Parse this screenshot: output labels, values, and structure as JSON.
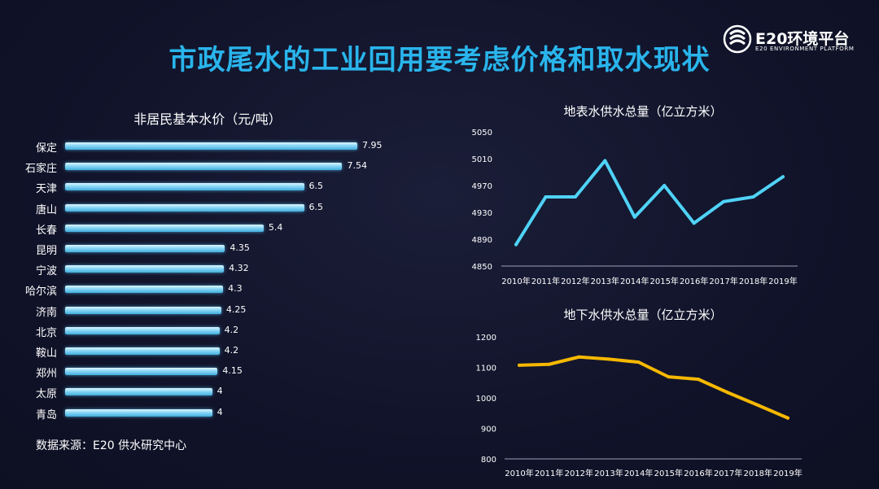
{
  "page": {
    "title": "市政尾水的工业回用要考虑价格和取水现状"
  },
  "logo": {
    "name": "E20环境平台",
    "subtitle": "E20 ENVIRONMENT PLATFORM"
  },
  "source": "数据来源：E20 供水研究中心",
  "colors": {
    "title": "#29b5ec",
    "bar": "#7fd3f5",
    "line1": "#4fd3f7",
    "line2": "#f5b800",
    "background": "#12142b"
  },
  "chart_data": [
    {
      "type": "bar",
      "orientation": "horizontal",
      "title": "非居民基本水价（元/吨）",
      "categories": [
        "保定",
        "石家庄",
        "天津",
        "唐山",
        "长春",
        "昆明",
        "宁波",
        "哈尔滨",
        "济南",
        "北京",
        "鞍山",
        "郑州",
        "太原",
        "青岛"
      ],
      "values": [
        7.95,
        7.54,
        6.5,
        6.5,
        5.4,
        4.35,
        4.32,
        4.3,
        4.25,
        4.2,
        4.2,
        4.15,
        4,
        4
      ],
      "value_labels": [
        "7.95",
        "7.54",
        "6.5",
        "6.5",
        "5.4",
        "4.35",
        "4.32",
        "4.3",
        "4.25",
        "4.2",
        "4.2",
        "4.15",
        "4",
        "4"
      ],
      "xlim": [
        0,
        8.6
      ]
    },
    {
      "type": "line",
      "title": "地表水供水总量（亿立方米）",
      "categories": [
        "2010年",
        "2011年",
        "2012年",
        "2013年",
        "2014年",
        "2015年",
        "2016年",
        "2017年",
        "2018年",
        "2019年"
      ],
      "values": [
        4882,
        4953,
        4953,
        5007,
        4923,
        4970,
        4914,
        4946,
        4953,
        4983
      ],
      "ylim": [
        4850,
        5050
      ],
      "yticks": [
        "4850",
        "4890",
        "4930",
        "4970",
        "5010",
        "5050"
      ],
      "yticks_values": [
        4850,
        4890,
        4930,
        4970,
        5010,
        5050
      ],
      "grid": false
    },
    {
      "type": "line",
      "title": "地下水供水总量（亿立方米）",
      "categories": [
        "2010年",
        "2011年",
        "2012年",
        "2013年",
        "2014年",
        "2015年",
        "2016年",
        "2017年",
        "2018年",
        "2019年"
      ],
      "values": [
        1107,
        1110,
        1134,
        1127,
        1117,
        1069,
        1061,
        1017,
        976,
        934
      ],
      "ylim": [
        800,
        1200
      ],
      "yticks": [
        "800",
        "900",
        "1000",
        "1100",
        "1200"
      ],
      "yticks_values": [
        800,
        900,
        1000,
        1100,
        1200
      ],
      "grid": false
    }
  ]
}
